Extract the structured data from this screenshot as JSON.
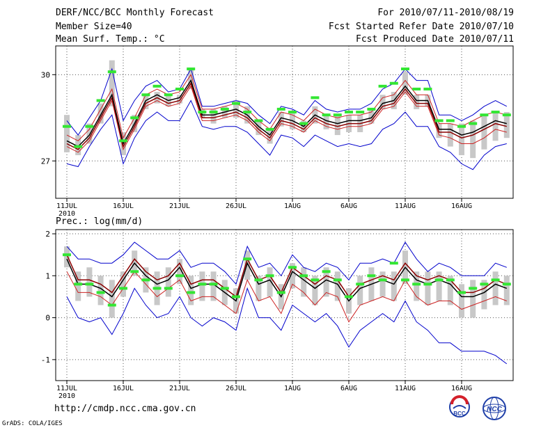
{
  "header": {
    "title": "DERF/NCC/BCC Monthly Forecast",
    "member_size": "Member Size=40",
    "variable": "Mean Surf. Temp.: °C",
    "period": "For 2010/07/11-2010/08/19",
    "started": "Fcst Started Refer Date 2010/07/10",
    "produced": "Fcst Produced Date 2010/07/11"
  },
  "footer": {
    "url": "http://cmdp.ncc.cma.gov.cn",
    "grads": "GrADS: COLA/IGES",
    "logo_bcc": "BCC",
    "logo_ncc": "NCC"
  },
  "colors": {
    "mean": "#000000",
    "median": "#8b0000",
    "spread": "#cc2222",
    "range": "#0000cc",
    "box": "#c8c8c8",
    "obs": "#33e633",
    "grid": "#555555"
  },
  "chart_data": [
    {
      "type": "line",
      "title": "Mean Surf. Temp.: °C",
      "x_tick_labels": [
        "11JUL",
        "16JUL",
        "21JUL",
        "26JUL",
        "1AUG",
        "6AUG",
        "11AUG",
        "16AUG"
      ],
      "x_tick_days": [
        1,
        6,
        11,
        16,
        21,
        26,
        31,
        36
      ],
      "year_label": "2010",
      "ylim": [
        25.7,
        31
      ],
      "yticks": [
        27,
        30
      ],
      "days": [
        1,
        2,
        3,
        4,
        5,
        6,
        7,
        8,
        9,
        10,
        11,
        12,
        13,
        14,
        15,
        16,
        17,
        18,
        19,
        20,
        21,
        22,
        23,
        24,
        25,
        26,
        27,
        28,
        29,
        30,
        31,
        32,
        33,
        34,
        35,
        36,
        37,
        38,
        39,
        40
      ],
      "series": [
        {
          "name": "ensemble mean",
          "values": [
            27.7,
            27.5,
            27.9,
            28.6,
            29.3,
            27.6,
            28.3,
            29.1,
            29.3,
            29.1,
            29.2,
            29.8,
            28.6,
            28.6,
            28.7,
            28.8,
            28.6,
            28.2,
            27.9,
            28.5,
            28.4,
            28.2,
            28.6,
            28.4,
            28.3,
            28.4,
            28.4,
            28.5,
            29.0,
            29.1,
            29.6,
            29.1,
            29.1,
            28.1,
            28.1,
            27.9,
            28.0,
            28.2,
            28.4,
            28.3
          ]
        },
        {
          "name": "median",
          "values": [
            27.6,
            27.4,
            27.8,
            28.5,
            29.2,
            27.5,
            28.2,
            29.0,
            29.2,
            29.0,
            29.1,
            29.7,
            28.5,
            28.5,
            28.6,
            28.7,
            28.5,
            28.1,
            27.8,
            28.4,
            28.3,
            28.1,
            28.5,
            28.3,
            28.2,
            28.3,
            28.3,
            28.4,
            28.9,
            29.0,
            29.5,
            29.0,
            29.0,
            28.0,
            28.0,
            27.8,
            27.9,
            28.1,
            28.3,
            28.2
          ]
        },
        {
          "name": "spread upper",
          "values": [
            27.9,
            27.7,
            28.1,
            28.8,
            29.5,
            27.8,
            28.5,
            29.3,
            29.5,
            29.3,
            29.4,
            30.0,
            28.8,
            28.8,
            28.9,
            29.0,
            28.8,
            28.4,
            28.1,
            28.7,
            28.6,
            28.4,
            28.8,
            28.6,
            28.5,
            28.6,
            28.6,
            28.7,
            29.2,
            29.3,
            29.8,
            29.3,
            29.3,
            28.3,
            28.3,
            28.2,
            28.4,
            28.6,
            28.7,
            28.6
          ]
        },
        {
          "name": "spread lower",
          "values": [
            27.5,
            27.3,
            27.7,
            28.4,
            29.1,
            27.4,
            28.1,
            28.9,
            29.1,
            28.9,
            29.0,
            29.6,
            28.4,
            28.4,
            28.5,
            28.6,
            28.4,
            28.0,
            27.7,
            28.3,
            28.2,
            28.0,
            28.4,
            28.2,
            28.1,
            28.2,
            28.2,
            28.3,
            28.8,
            28.9,
            29.4,
            28.9,
            28.9,
            27.9,
            27.8,
            27.6,
            27.6,
            27.8,
            28.1,
            28.0
          ]
        },
        {
          "name": "max",
          "values": [
            28.4,
            27.9,
            28.5,
            29.1,
            30.2,
            28.4,
            29.1,
            29.6,
            29.8,
            29.4,
            29.5,
            30.2,
            28.9,
            28.9,
            29.0,
            29.1,
            29.0,
            28.6,
            28.3,
            28.9,
            28.8,
            28.6,
            29.1,
            28.8,
            28.7,
            28.8,
            28.8,
            29.0,
            29.5,
            29.7,
            30.2,
            29.8,
            29.8,
            28.6,
            28.6,
            28.4,
            28.6,
            28.9,
            29.1,
            28.9
          ]
        },
        {
          "name": "min",
          "values": [
            26.9,
            26.8,
            27.5,
            28.1,
            28.6,
            26.9,
            27.8,
            28.4,
            28.7,
            28.4,
            28.4,
            29.1,
            28.2,
            28.1,
            28.2,
            28.2,
            28.0,
            27.6,
            27.2,
            27.9,
            27.8,
            27.5,
            27.9,
            27.7,
            27.5,
            27.6,
            27.5,
            27.6,
            28.1,
            28.3,
            28.7,
            28.2,
            28.2,
            27.5,
            27.3,
            26.9,
            26.7,
            27.2,
            27.5,
            27.6
          ]
        },
        {
          "name": "box upper",
          "values": [
            28.6,
            27.9,
            28.3,
            29.0,
            30.5,
            28.0,
            28.6,
            29.3,
            29.4,
            29.3,
            29.3,
            30.2,
            28.8,
            28.8,
            28.9,
            29.1,
            28.9,
            28.4,
            28.1,
            28.7,
            28.7,
            28.4,
            28.9,
            28.6,
            28.6,
            28.6,
            28.6,
            28.8,
            29.3,
            29.4,
            30.1,
            29.3,
            29.3,
            28.3,
            28.3,
            28.3,
            28.4,
            28.6,
            28.7,
            28.7
          ]
        },
        {
          "name": "box lower",
          "values": [
            27.3,
            27.2,
            27.6,
            28.3,
            28.9,
            27.2,
            28.0,
            28.8,
            29.0,
            28.9,
            29.0,
            29.5,
            28.5,
            28.3,
            28.5,
            28.5,
            28.3,
            27.9,
            27.6,
            28.2,
            28.1,
            28.0,
            28.3,
            28.1,
            27.9,
            28.0,
            28.0,
            28.3,
            28.8,
            28.8,
            29.3,
            28.8,
            28.9,
            27.8,
            27.5,
            27.2,
            27.1,
            27.4,
            27.7,
            27.8
          ]
        },
        {
          "name": "observed/climatology",
          "values": [
            28.2,
            27.5,
            28.2,
            29.1,
            30.1,
            27.7,
            28.5,
            29.3,
            29.6,
            29.3,
            29.5,
            30.2,
            28.7,
            28.7,
            28.8,
            29.0,
            28.7,
            28.4,
            28.1,
            28.8,
            28.7,
            28.3,
            29.2,
            28.6,
            28.6,
            28.7,
            28.7,
            28.8,
            29.6,
            29.7,
            30.2,
            29.5,
            29.5,
            28.4,
            28.4,
            28.2,
            28.3,
            28.6,
            28.7,
            28.6
          ]
        }
      ]
    },
    {
      "type": "line",
      "title": "Prec.: log(mm/d)",
      "x_tick_labels": [
        "11JUL",
        "16JUL",
        "21JUL",
        "26JUL",
        "1AUG",
        "6AUG",
        "11AUG",
        "16AUG"
      ],
      "x_tick_days": [
        1,
        6,
        11,
        16,
        21,
        26,
        31,
        36
      ],
      "year_label": "2010",
      "ylim": [
        -1.5,
        2.1
      ],
      "yticks": [
        -1,
        0,
        1,
        2
      ],
      "days": [
        1,
        2,
        3,
        4,
        5,
        6,
        7,
        8,
        9,
        10,
        11,
        12,
        13,
        14,
        15,
        16,
        17,
        18,
        19,
        20,
        21,
        22,
        23,
        24,
        25,
        26,
        27,
        28,
        29,
        30,
        31,
        32,
        33,
        34,
        35,
        36,
        37,
        38,
        39,
        40
      ],
      "series": [
        {
          "name": "ensemble mean",
          "values": [
            1.4,
            0.8,
            0.8,
            0.7,
            0.5,
            0.9,
            1.3,
            1.0,
            0.8,
            0.9,
            1.2,
            0.7,
            0.8,
            0.8,
            0.6,
            0.4,
            1.3,
            0.8,
            0.9,
            0.5,
            1.1,
            0.9,
            0.7,
            0.9,
            0.8,
            0.4,
            0.7,
            0.8,
            0.9,
            0.8,
            1.2,
            0.9,
            0.8,
            0.9,
            0.8,
            0.5,
            0.5,
            0.6,
            0.8,
            0.7
          ]
        },
        {
          "name": "median",
          "values": [
            1.5,
            0.9,
            0.9,
            0.8,
            0.6,
            1.0,
            1.4,
            1.1,
            0.9,
            1.0,
            1.3,
            0.8,
            0.9,
            0.9,
            0.7,
            0.5,
            1.4,
            0.9,
            1.0,
            0.6,
            1.2,
            1.0,
            0.8,
            1.0,
            0.9,
            0.5,
            0.8,
            0.9,
            1.0,
            0.9,
            1.3,
            1.0,
            0.9,
            1.0,
            0.9,
            0.6,
            0.6,
            0.7,
            0.9,
            0.8
          ]
        },
        {
          "name": "spread lower",
          "values": [
            1.1,
            0.6,
            0.6,
            0.5,
            0.3,
            0.7,
            1.1,
            0.8,
            0.5,
            0.7,
            0.9,
            0.4,
            0.5,
            0.5,
            0.3,
            0.1,
            0.9,
            0.4,
            0.5,
            0.1,
            0.8,
            0.6,
            0.3,
            0.6,
            0.5,
            -0.1,
            0.3,
            0.4,
            0.5,
            0.4,
            0.9,
            0.5,
            0.3,
            0.4,
            0.4,
            0.2,
            0.3,
            0.4,
            0.5,
            0.4
          ]
        },
        {
          "name": "max",
          "values": [
            1.7,
            1.4,
            1.4,
            1.3,
            1.3,
            1.5,
            1.8,
            1.6,
            1.4,
            1.4,
            1.6,
            1.2,
            1.3,
            1.3,
            1.1,
            0.8,
            1.7,
            1.2,
            1.3,
            1.0,
            1.5,
            1.2,
            1.1,
            1.3,
            1.2,
            0.9,
            1.3,
            1.3,
            1.4,
            1.3,
            1.8,
            1.4,
            1.1,
            1.3,
            1.2,
            1.0,
            1.0,
            1.0,
            1.3,
            1.2
          ]
        },
        {
          "name": "min",
          "values": [
            0.5,
            0.0,
            -0.1,
            0.0,
            -0.4,
            0.1,
            0.7,
            0.3,
            0.0,
            0.1,
            0.5,
            0.0,
            -0.2,
            0.0,
            -0.1,
            -0.3,
            0.7,
            0.0,
            0.0,
            -0.3,
            0.3,
            0.1,
            -0.1,
            0.1,
            -0.2,
            -0.7,
            -0.3,
            -0.1,
            0.1,
            -0.1,
            0.4,
            -0.1,
            -0.3,
            -0.6,
            -0.6,
            -0.8,
            -0.8,
            -0.8,
            -0.9,
            -1.1
          ]
        },
        {
          "name": "box upper",
          "values": [
            1.7,
            1.1,
            1.2,
            1.0,
            0.9,
            1.1,
            1.6,
            1.2,
            1.1,
            1.2,
            1.4,
            1.0,
            1.1,
            1.1,
            0.9,
            0.7,
            1.6,
            1.0,
            1.2,
            0.8,
            1.3,
            1.2,
            1.0,
            1.2,
            1.1,
            0.7,
            1.0,
            1.2,
            1.1,
            1.1,
            1.6,
            1.1,
            1.1,
            1.1,
            1.0,
            0.8,
            0.9,
            0.9,
            1.1,
            1.0
          ]
        },
        {
          "name": "box lower",
          "values": [
            1.2,
            0.4,
            0.5,
            0.3,
            0.0,
            0.5,
            1.0,
            0.6,
            0.3,
            0.5,
            0.8,
            0.3,
            0.4,
            0.4,
            0.3,
            0.1,
            0.9,
            0.4,
            0.5,
            0.2,
            0.7,
            0.5,
            0.3,
            0.5,
            0.4,
            0.1,
            0.3,
            0.4,
            0.5,
            0.4,
            0.8,
            0.4,
            0.3,
            0.4,
            0.3,
            0.0,
            0.0,
            0.2,
            0.3,
            0.3
          ]
        },
        {
          "name": "observed/climatology",
          "values": [
            1.5,
            0.8,
            0.8,
            0.6,
            0.3,
            0.7,
            1.1,
            0.9,
            0.7,
            0.7,
            1.0,
            0.6,
            0.8,
            0.8,
            0.7,
            0.5,
            1.4,
            0.9,
            1.0,
            0.6,
            1.2,
            1.0,
            0.9,
            1.1,
            0.9,
            0.5,
            0.8,
            1.0,
            0.9,
            1.3,
            0.9,
            0.8,
            0.8,
            0.9,
            0.9,
            0.6,
            0.7,
            0.8,
            0.9,
            0.8
          ]
        }
      ]
    }
  ]
}
